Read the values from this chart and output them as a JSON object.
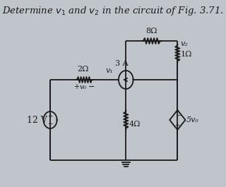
{
  "title": "Determine $v_1$ and $v_2$ in the circuit of Fig. 3.71.",
  "bg_color": "#c0c5cc",
  "line_color": "#1a1a1a",
  "font_color": "#1a1a1a",
  "title_fontsize": 9.5,
  "label_fontsize": 9,
  "small_fontsize": 8,
  "voltage_source_12": "12 V",
  "current_source_3A": "3 A",
  "dep_voltage_label": "5v₀",
  "R1_label": "2Ω",
  "R2_label": "8Ω",
  "R3_label": "4Ω",
  "R4_label": "1Ω",
  "v1_label": "v₁",
  "v2_label": "v₂",
  "vb_label": "v₀"
}
